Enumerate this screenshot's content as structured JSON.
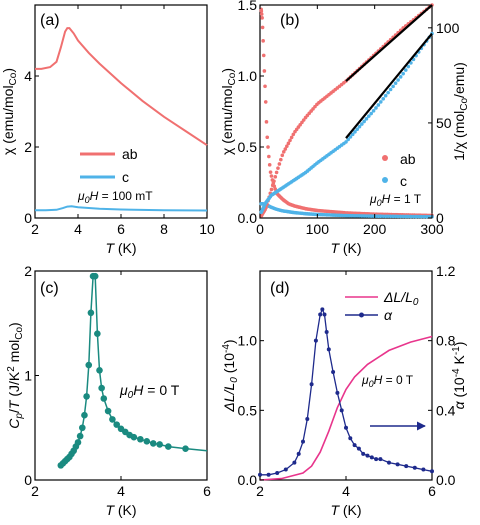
{
  "colors": {
    "ab": "#f07070",
    "c": "#4fb3e8",
    "teal": "#1a8a80",
    "navy": "#1e2a8c",
    "magenta": "#e8358c",
    "fit": "#000000"
  },
  "chart_data": [
    {
      "panel": "(a)",
      "type": "line",
      "xlabel": "T (K)",
      "ylabel": "χ (emu/mol_Co)",
      "xlim": [
        2,
        10
      ],
      "ylim": [
        0,
        6
      ],
      "xticks": [
        "2",
        "4",
        "6",
        "8",
        "10"
      ],
      "yticks": [
        "0",
        "2",
        "4"
      ],
      "annotation": "μ0H = 100 mT",
      "legend": [
        "ab",
        "c"
      ],
      "series": [
        {
          "name": "ab",
          "x": [
            2.0,
            2.3,
            2.7,
            3.0,
            3.2,
            3.4,
            3.5,
            3.6,
            3.8,
            4.0,
            4.5,
            5.0,
            6.0,
            7.0,
            8.0,
            9.0,
            10.0
          ],
          "y": [
            4.2,
            4.2,
            4.25,
            4.4,
            4.8,
            5.25,
            5.35,
            5.35,
            5.2,
            5.0,
            4.65,
            4.35,
            3.8,
            3.3,
            2.85,
            2.45,
            2.05
          ]
        },
        {
          "name": "c",
          "x": [
            2.0,
            2.5,
            3.0,
            3.3,
            3.5,
            3.7,
            4.0,
            5.0,
            6.0,
            8.0,
            10.0
          ],
          "y": [
            0.22,
            0.22,
            0.23,
            0.28,
            0.32,
            0.33,
            0.3,
            0.26,
            0.24,
            0.22,
            0.21
          ]
        }
      ]
    },
    {
      "panel": "(b)",
      "type": "scatter",
      "xlabel": "T (K)",
      "ylabel": "χ (emu/mol_Co)",
      "y2label": "1/χ (mol_Co/emu)",
      "xlim": [
        0,
        300
      ],
      "ylim": [
        0,
        1.5
      ],
      "y2lim": [
        0,
        112
      ],
      "xticks": [
        "0",
        "100",
        "200",
        "300"
      ],
      "yticks": [
        "0.0",
        "0.5",
        "1.0",
        "1.5"
      ],
      "y2ticks": [
        "0",
        "50",
        "100"
      ],
      "annotation": "μ0H = 1 T",
      "legend": [
        "ab",
        "c"
      ],
      "series": [
        {
          "name": "ab",
          "axis": "left",
          "x": [
            2,
            4,
            6,
            8,
            10,
            12,
            15,
            18,
            22,
            26,
            30,
            40,
            50,
            60,
            80,
            100,
            150,
            200,
            250,
            300
          ],
          "y": [
            1.47,
            1.4,
            1.2,
            1.0,
            0.82,
            0.6,
            0.45,
            0.33,
            0.26,
            0.21,
            0.17,
            0.13,
            0.1,
            0.085,
            0.065,
            0.053,
            0.036,
            0.027,
            0.022,
            0.018
          ]
        },
        {
          "name": "c",
          "axis": "left",
          "x": [
            2,
            5,
            10,
            15,
            20,
            30,
            40,
            60,
            80,
            100,
            150,
            200,
            300
          ],
          "y": [
            0.1,
            0.1,
            0.095,
            0.085,
            0.075,
            0.06,
            0.05,
            0.038,
            0.03,
            0.025,
            0.017,
            0.013,
            0.009
          ]
        },
        {
          "name": "ab",
          "axis": "right",
          "x": [
            2,
            10,
            20,
            30,
            40,
            60,
            80,
            100,
            150,
            200,
            250,
            300
          ],
          "y": [
            1,
            5,
            15,
            25,
            34,
            45,
            53,
            60,
            72,
            86,
            100,
            112
          ]
        },
        {
          "name": "c",
          "axis": "right",
          "x": [
            2,
            10,
            20,
            30,
            40,
            60,
            80,
            100,
            150,
            200,
            250,
            300
          ],
          "y": [
            3,
            8,
            12,
            14,
            16,
            20,
            24,
            29,
            40,
            57,
            76,
            97
          ]
        }
      ],
      "fits": [
        {
          "x": [
            150,
            300
          ],
          "y": [
            72,
            112
          ]
        },
        {
          "x": [
            150,
            300
          ],
          "y": [
            42,
            97
          ]
        }
      ]
    },
    {
      "panel": "(c)",
      "type": "line",
      "xlabel": "T (K)",
      "ylabel": "Cp/T (J/K² mol_Co)",
      "xlim": [
        2,
        6
      ],
      "ylim": [
        0,
        2
      ],
      "xticks": [
        "2",
        "4",
        "6"
      ],
      "yticks": [
        "0",
        "1",
        "2"
      ],
      "annotation": "μ0H = 0 T",
      "series": [
        {
          "name": "",
          "x": [
            2.6,
            2.65,
            2.7,
            2.75,
            2.8,
            2.85,
            2.9,
            2.95,
            3.0,
            3.05,
            3.1,
            3.15,
            3.2,
            3.25,
            3.3,
            3.35,
            3.4,
            3.45,
            3.5,
            3.55,
            3.6,
            3.7,
            3.8,
            3.9,
            4.0,
            4.1,
            4.2,
            4.3,
            4.45,
            4.6,
            4.75,
            4.9,
            5.1,
            5.5,
            6.0
          ],
          "y": [
            0.14,
            0.16,
            0.18,
            0.2,
            0.22,
            0.25,
            0.28,
            0.32,
            0.36,
            0.42,
            0.5,
            0.62,
            0.8,
            1.1,
            1.6,
            1.95,
            1.95,
            1.4,
            1.05,
            0.88,
            0.78,
            0.66,
            0.58,
            0.53,
            0.49,
            0.46,
            0.43,
            0.41,
            0.39,
            0.37,
            0.35,
            0.34,
            0.32,
            0.3,
            0.28
          ]
        }
      ]
    },
    {
      "panel": "(d)",
      "type": "line",
      "xlabel": "T (K)",
      "ylabel": "ΔL/L0 (10⁻⁴)",
      "y2label": "α (10⁻⁴ K⁻¹)",
      "xlim": [
        2,
        6
      ],
      "ylim": [
        0,
        1.5
      ],
      "y2lim": [
        0,
        1.2
      ],
      "xticks": [
        "2",
        "4",
        "6"
      ],
      "yticks": [
        "0.0",
        "0.5",
        "1.0"
      ],
      "y2ticks": [
        "0.0",
        "0.4",
        "0.8",
        "1.2"
      ],
      "annotation": "μ0H = 0 T",
      "legend": [
        "ΔL/L0",
        "α"
      ],
      "series": [
        {
          "name": "ΔL/L0",
          "axis": "left",
          "x": [
            2.0,
            2.5,
            3.0,
            3.2,
            3.4,
            3.6,
            3.8,
            4.0,
            4.2,
            4.5,
            5.0,
            5.5,
            6.0
          ],
          "y": [
            0.0,
            0.01,
            0.05,
            0.1,
            0.2,
            0.35,
            0.52,
            0.65,
            0.74,
            0.83,
            0.93,
            0.99,
            1.03
          ]
        },
        {
          "name": "α",
          "axis": "right",
          "x": [
            2.0,
            2.2,
            2.4,
            2.6,
            2.8,
            2.9,
            3.0,
            3.1,
            3.2,
            3.3,
            3.4,
            3.45,
            3.5,
            3.55,
            3.6,
            3.7,
            3.8,
            3.9,
            4.0,
            4.1,
            4.2,
            4.3,
            4.4,
            4.5,
            4.6,
            4.7,
            4.8,
            5.0,
            5.2,
            5.4,
            5.6,
            5.8,
            6.0
          ],
          "y": [
            0.03,
            0.03,
            0.04,
            0.06,
            0.1,
            0.15,
            0.22,
            0.35,
            0.55,
            0.8,
            0.95,
            0.98,
            0.95,
            0.85,
            0.75,
            0.62,
            0.5,
            0.4,
            0.3,
            0.24,
            0.2,
            0.18,
            0.15,
            0.14,
            0.13,
            0.12,
            0.12,
            0.1,
            0.09,
            0.08,
            0.07,
            0.06,
            0.05
          ]
        }
      ]
    }
  ]
}
